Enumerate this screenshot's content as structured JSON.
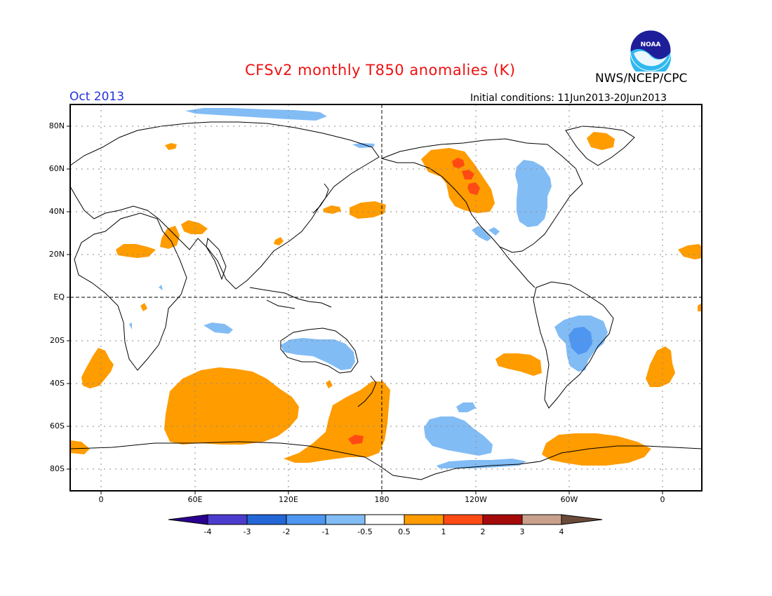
{
  "header": {
    "title": "CFSv2 monthly T850 anomalies (K)",
    "org": "NWS/NCEP/CPC",
    "month": "Oct 2013",
    "initial_conditions": "Initial conditions: 11Jun2013-20Jun2013",
    "logo_text": "NOAA",
    "logo_icon": "noaa-logo"
  },
  "axes": {
    "lat_labels": [
      "80N",
      "60N",
      "40N",
      "20N",
      "EQ",
      "20S",
      "40S",
      "60S",
      "80S"
    ],
    "lon_labels": [
      "0",
      "60E",
      "120E",
      "180",
      "120W",
      "60W",
      "0"
    ]
  },
  "colorbar": {
    "labels": [
      "-4",
      "-3",
      "-2",
      "-1",
      "-0.5",
      "0.5",
      "1",
      "2",
      "3",
      "4"
    ],
    "colors": [
      "#2a0090",
      "#4c3ccd",
      "#2366d6",
      "#4e96f0",
      "#82bcf5",
      "#ffffff",
      "#ff9c00",
      "#ff4a14",
      "#a50a0a",
      "#c8a08c",
      "#6b4a3a"
    ]
  },
  "anomalies": {
    "warm_color": "#ff9c00",
    "warm_strong_color": "#ff4a14",
    "cool_color": "#82bcf5",
    "cool_strong_color": "#4e96f0",
    "strong_cool_color": "#2d86e6"
  }
}
